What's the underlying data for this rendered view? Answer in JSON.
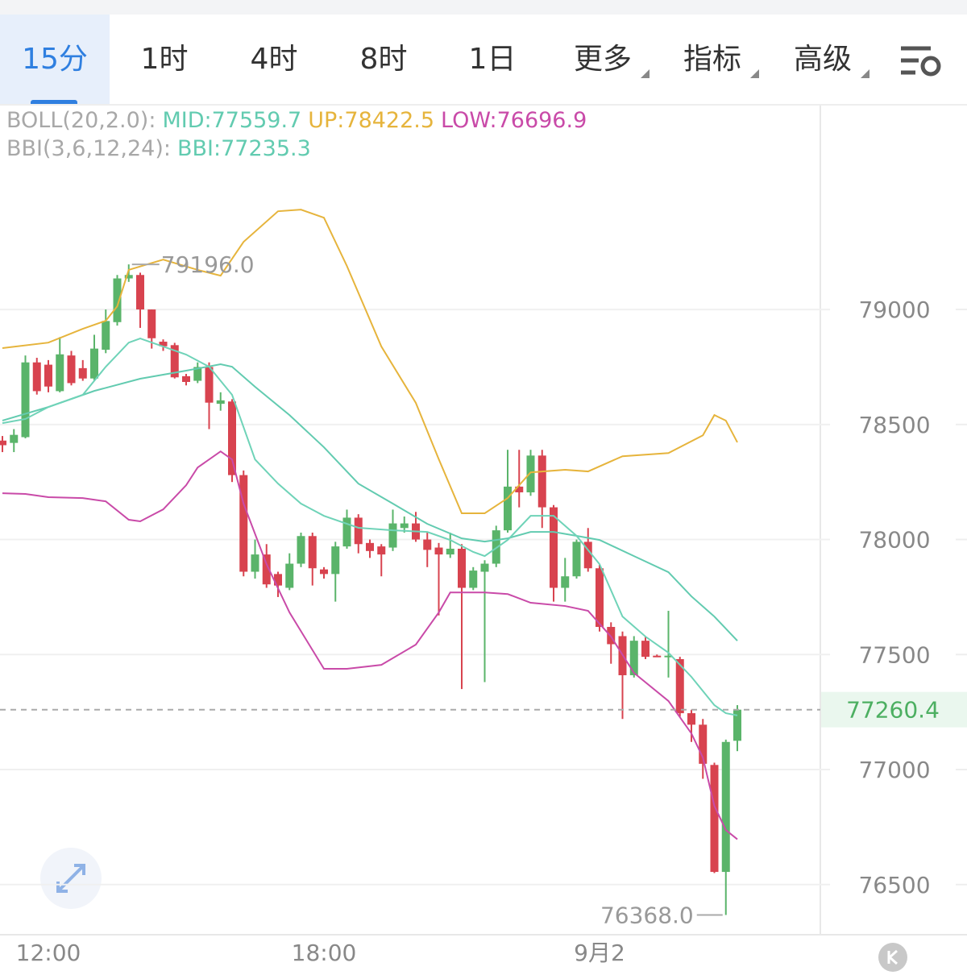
{
  "tabs": [
    "15分",
    "1时",
    "4时",
    "8时",
    "1日",
    "更多",
    "指标",
    "高级"
  ],
  "indicator_header": [
    [
      "BOLL(20,2.0):",
      "MID:77559.7",
      "UP:78422.5",
      "LOW:76696.9"
    ],
    [
      "BBI(3,6,12,24):",
      "BBI:77235.3"
    ]
  ],
  "chart_data": {
    "type": "candlestick",
    "categories": [
      null,
      null,
      null,
      null,
      "12:00",
      null,
      null,
      null,
      null,
      null,
      null,
      null,
      null,
      null,
      null,
      null,
      null,
      null,
      null,
      null,
      null,
      null,
      null,
      null,
      null,
      null,
      null,
      null,
      "18:00",
      null,
      null,
      null,
      null,
      null,
      null,
      null,
      null,
      null,
      null,
      null,
      null,
      null,
      null,
      null,
      null,
      null,
      null,
      null,
      null,
      null,
      null,
      null,
      "9月2",
      null,
      null,
      null,
      null,
      null,
      null,
      null,
      null,
      null,
      null,
      null,
      null
    ],
    "open": [
      78430,
      78420,
      78445,
      78770,
      78760,
      78645,
      78800,
      78745,
      78700,
      78825,
      78945,
      79135,
      79150,
      79000,
      78860,
      78845,
      78710,
      78690,
      78750,
      78590,
      78600,
      78280,
      77860,
      77935,
      77850,
      77790,
      77895,
      78015,
      77870,
      77850,
      77970,
      78095,
      77985,
      77970,
      77965,
      78050,
      78070,
      78000,
      77965,
      77935,
      77960,
      77790,
      77860,
      77895,
      78040,
      78230,
      78205,
      78365,
      78140,
      77790,
      77840,
      77990,
      77875,
      77620,
      77580,
      77410,
      77560,
      77495,
      77490,
      77480,
      77245,
      77195,
      77020,
      76555,
      77125
    ],
    "high": [
      78450,
      78480,
      78800,
      78790,
      78780,
      78880,
      78820,
      78780,
      78890,
      79000,
      79150,
      79196,
      79160,
      79000,
      78870,
      78855,
      78720,
      78770,
      78770,
      78640,
      78610,
      78300,
      78000,
      77980,
      77860,
      77940,
      78030,
      78030,
      77880,
      77990,
      78130,
      78110,
      78000,
      77980,
      78130,
      78100,
      78120,
      78030,
      77985,
      78030,
      77980,
      77880,
      77910,
      78060,
      78390,
      78390,
      78390,
      78390,
      78150,
      77920,
      78000,
      78050,
      77890,
      77640,
      77600,
      77580,
      77580,
      77500,
      77690,
      77490,
      77260,
      77220,
      77030,
      77130,
      77280
    ],
    "low": [
      78380,
      78380,
      78440,
      78630,
      78640,
      78640,
      78670,
      78690,
      78690,
      78810,
      78930,
      79120,
      78920,
      78830,
      78820,
      78700,
      78670,
      78680,
      78480,
      78560,
      78250,
      77840,
      77830,
      77790,
      77750,
      77780,
      77880,
      77800,
      77830,
      77730,
      77960,
      77940,
      77920,
      77840,
      77950,
      78030,
      77990,
      77880,
      77670,
      77920,
      77350,
      77780,
      77380,
      77880,
      78030,
      78140,
      78190,
      78050,
      77730,
      77730,
      77830,
      77860,
      77600,
      77460,
      77220,
      77400,
      77480,
      77490,
      77400,
      77230,
      77120,
      76960,
      76550,
      76368,
      77080
    ],
    "close": [
      78410,
      78455,
      78770,
      78645,
      78665,
      78805,
      78680,
      78700,
      78830,
      78950,
      79135,
      79150,
      79000,
      78875,
      78840,
      78705,
      78685,
      78750,
      78595,
      78605,
      78280,
      77860,
      77935,
      77805,
      77800,
      77895,
      78015,
      77875,
      77850,
      77970,
      78095,
      77980,
      77950,
      77935,
      78070,
      78070,
      78000,
      77955,
      77935,
      77960,
      77790,
      77865,
      77895,
      78040,
      78230,
      78205,
      78365,
      78140,
      77790,
      77840,
      77990,
      77875,
      77620,
      77545,
      77410,
      77560,
      77490,
      77490,
      77495,
      77245,
      77195,
      77025,
      76555,
      77120,
      77260.4
    ],
    "up_color": "#5ab46a",
    "down_color": "#d8434f",
    "lines": [
      {
        "color": "#e6b43c",
        "x": [
          0,
          4,
          7,
          9,
          10,
          11,
          14,
          17,
          19,
          21,
          24,
          26,
          28,
          30,
          33,
          36,
          38,
          40,
          42,
          44,
          46,
          49,
          51,
          54,
          58,
          61,
          62,
          63,
          64
        ],
        "values": [
          78832,
          78856,
          78916,
          78951,
          79014,
          79172,
          79217,
          79172,
          79147,
          79294,
          79427,
          79434,
          79399,
          79189,
          78839,
          78594,
          78349,
          78114,
          78114,
          78180,
          78292,
          78303,
          78296,
          78362,
          78376,
          78453,
          78541,
          78517,
          78422.5
        ]
      },
      {
        "color": "#62cbb0",
        "x": [
          0,
          4,
          8,
          12,
          16,
          19,
          20,
          22,
          25,
          28,
          31,
          34,
          37,
          40,
          42,
          44,
          46,
          48,
          50,
          52,
          55,
          58,
          60,
          62,
          64
        ],
        "values": [
          78517,
          78576,
          78646,
          78699,
          78734,
          78762,
          78751,
          78664,
          78541,
          78401,
          78243,
          78156,
          78068,
          78005,
          77991,
          78005,
          78033,
          78033,
          78016,
          77998,
          77928,
          77858,
          77753,
          77665,
          77559.7
        ]
      },
      {
        "color": "#c94aa8",
        "x": [
          0,
          2,
          4,
          7,
          9,
          11,
          12,
          14,
          16,
          17,
          19,
          20,
          21,
          23,
          25,
          28,
          30,
          33,
          36,
          38,
          39,
          42,
          44,
          46,
          49,
          51,
          53,
          55,
          58,
          60,
          61,
          62,
          63,
          64
        ],
        "values": [
          78201,
          78198,
          78184,
          78180,
          78166,
          78086,
          78079,
          78131,
          78236,
          78313,
          78383,
          78348,
          78156,
          77893,
          77683,
          77438,
          77438,
          77455,
          77543,
          77683,
          77770,
          77770,
          77763,
          77725,
          77711,
          77690,
          77578,
          77420,
          77298,
          77157,
          77052,
          76842,
          76737,
          76696.9
        ]
      },
      {
        "color": "#6fd3b8",
        "x": [
          0,
          2,
          4,
          7,
          9,
          11,
          12,
          14,
          16,
          18,
          20,
          22,
          24,
          26,
          28,
          31,
          34,
          37,
          39,
          41,
          42,
          44,
          46,
          48,
          50,
          52,
          54,
          56,
          58,
          60,
          62,
          63,
          64
        ],
        "values": [
          78506,
          78524,
          78576,
          78629,
          78751,
          78856,
          78874,
          78839,
          78804,
          78751,
          78629,
          78348,
          78243,
          78156,
          78103,
          78051,
          78040,
          78033,
          77998,
          77946,
          77928,
          77998,
          78103,
          78103,
          78016,
          77893,
          77665,
          77578,
          77508,
          77403,
          77280,
          77245,
          77235.3
        ]
      }
    ],
    "ylim": [
      76282,
      79890
    ],
    "yticks": [
      76500,
      77000,
      77500,
      78000,
      78500,
      79000
    ],
    "grid": true,
    "last_price": 77260.4,
    "annotations": [
      {
        "value": 79196,
        "label": "79196.0",
        "index": 11
      },
      {
        "value": 76368,
        "label": "76368.0",
        "index": 63
      }
    ]
  }
}
